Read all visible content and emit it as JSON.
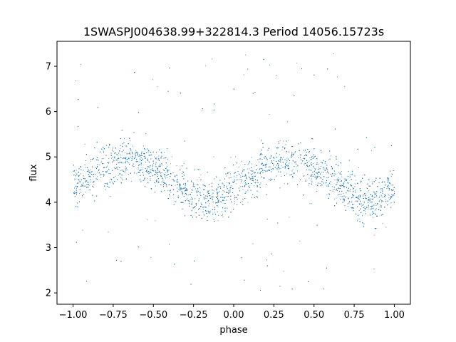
{
  "chart_data": {
    "type": "scatter",
    "title": "1SWASPJ004638.99+322814.3 Period 14056.15723s",
    "xlabel": "phase",
    "ylabel": "flux",
    "xlim": [
      -1.1,
      1.1
    ],
    "ylim": [
      1.75,
      7.55
    ],
    "xticks": [
      -1.0,
      -0.75,
      -0.5,
      -0.25,
      0.0,
      0.25,
      0.5,
      0.75,
      1.0
    ],
    "xtick_labels": [
      "−1.00",
      "−0.75",
      "−0.50",
      "−0.25",
      "0.00",
      "0.25",
      "0.50",
      "0.75",
      "1.00"
    ],
    "yticks": [
      2,
      3,
      4,
      5,
      6,
      7
    ],
    "ytick_labels": [
      "2",
      "3",
      "4",
      "5",
      "6",
      "7"
    ],
    "grid": false,
    "marker_color": "#1f77b4",
    "series": [
      {
        "x": [
          -1.0,
          -0.9,
          -0.8,
          -0.7,
          -0.6,
          -0.5,
          -0.4,
          -0.3,
          -0.2,
          -0.15,
          -0.1,
          0.0,
          0.1,
          0.2,
          0.3,
          0.4,
          0.5,
          0.6,
          0.7,
          0.8,
          0.85,
          0.9,
          1.0
        ],
        "y": [
          4.4,
          4.6,
          4.8,
          4.93,
          4.93,
          4.78,
          4.55,
          4.25,
          4.08,
          4.05,
          4.1,
          4.35,
          4.6,
          4.8,
          4.92,
          4.92,
          4.78,
          4.55,
          4.28,
          4.1,
          4.05,
          4.08,
          4.35
        ]
      }
    ]
  }
}
